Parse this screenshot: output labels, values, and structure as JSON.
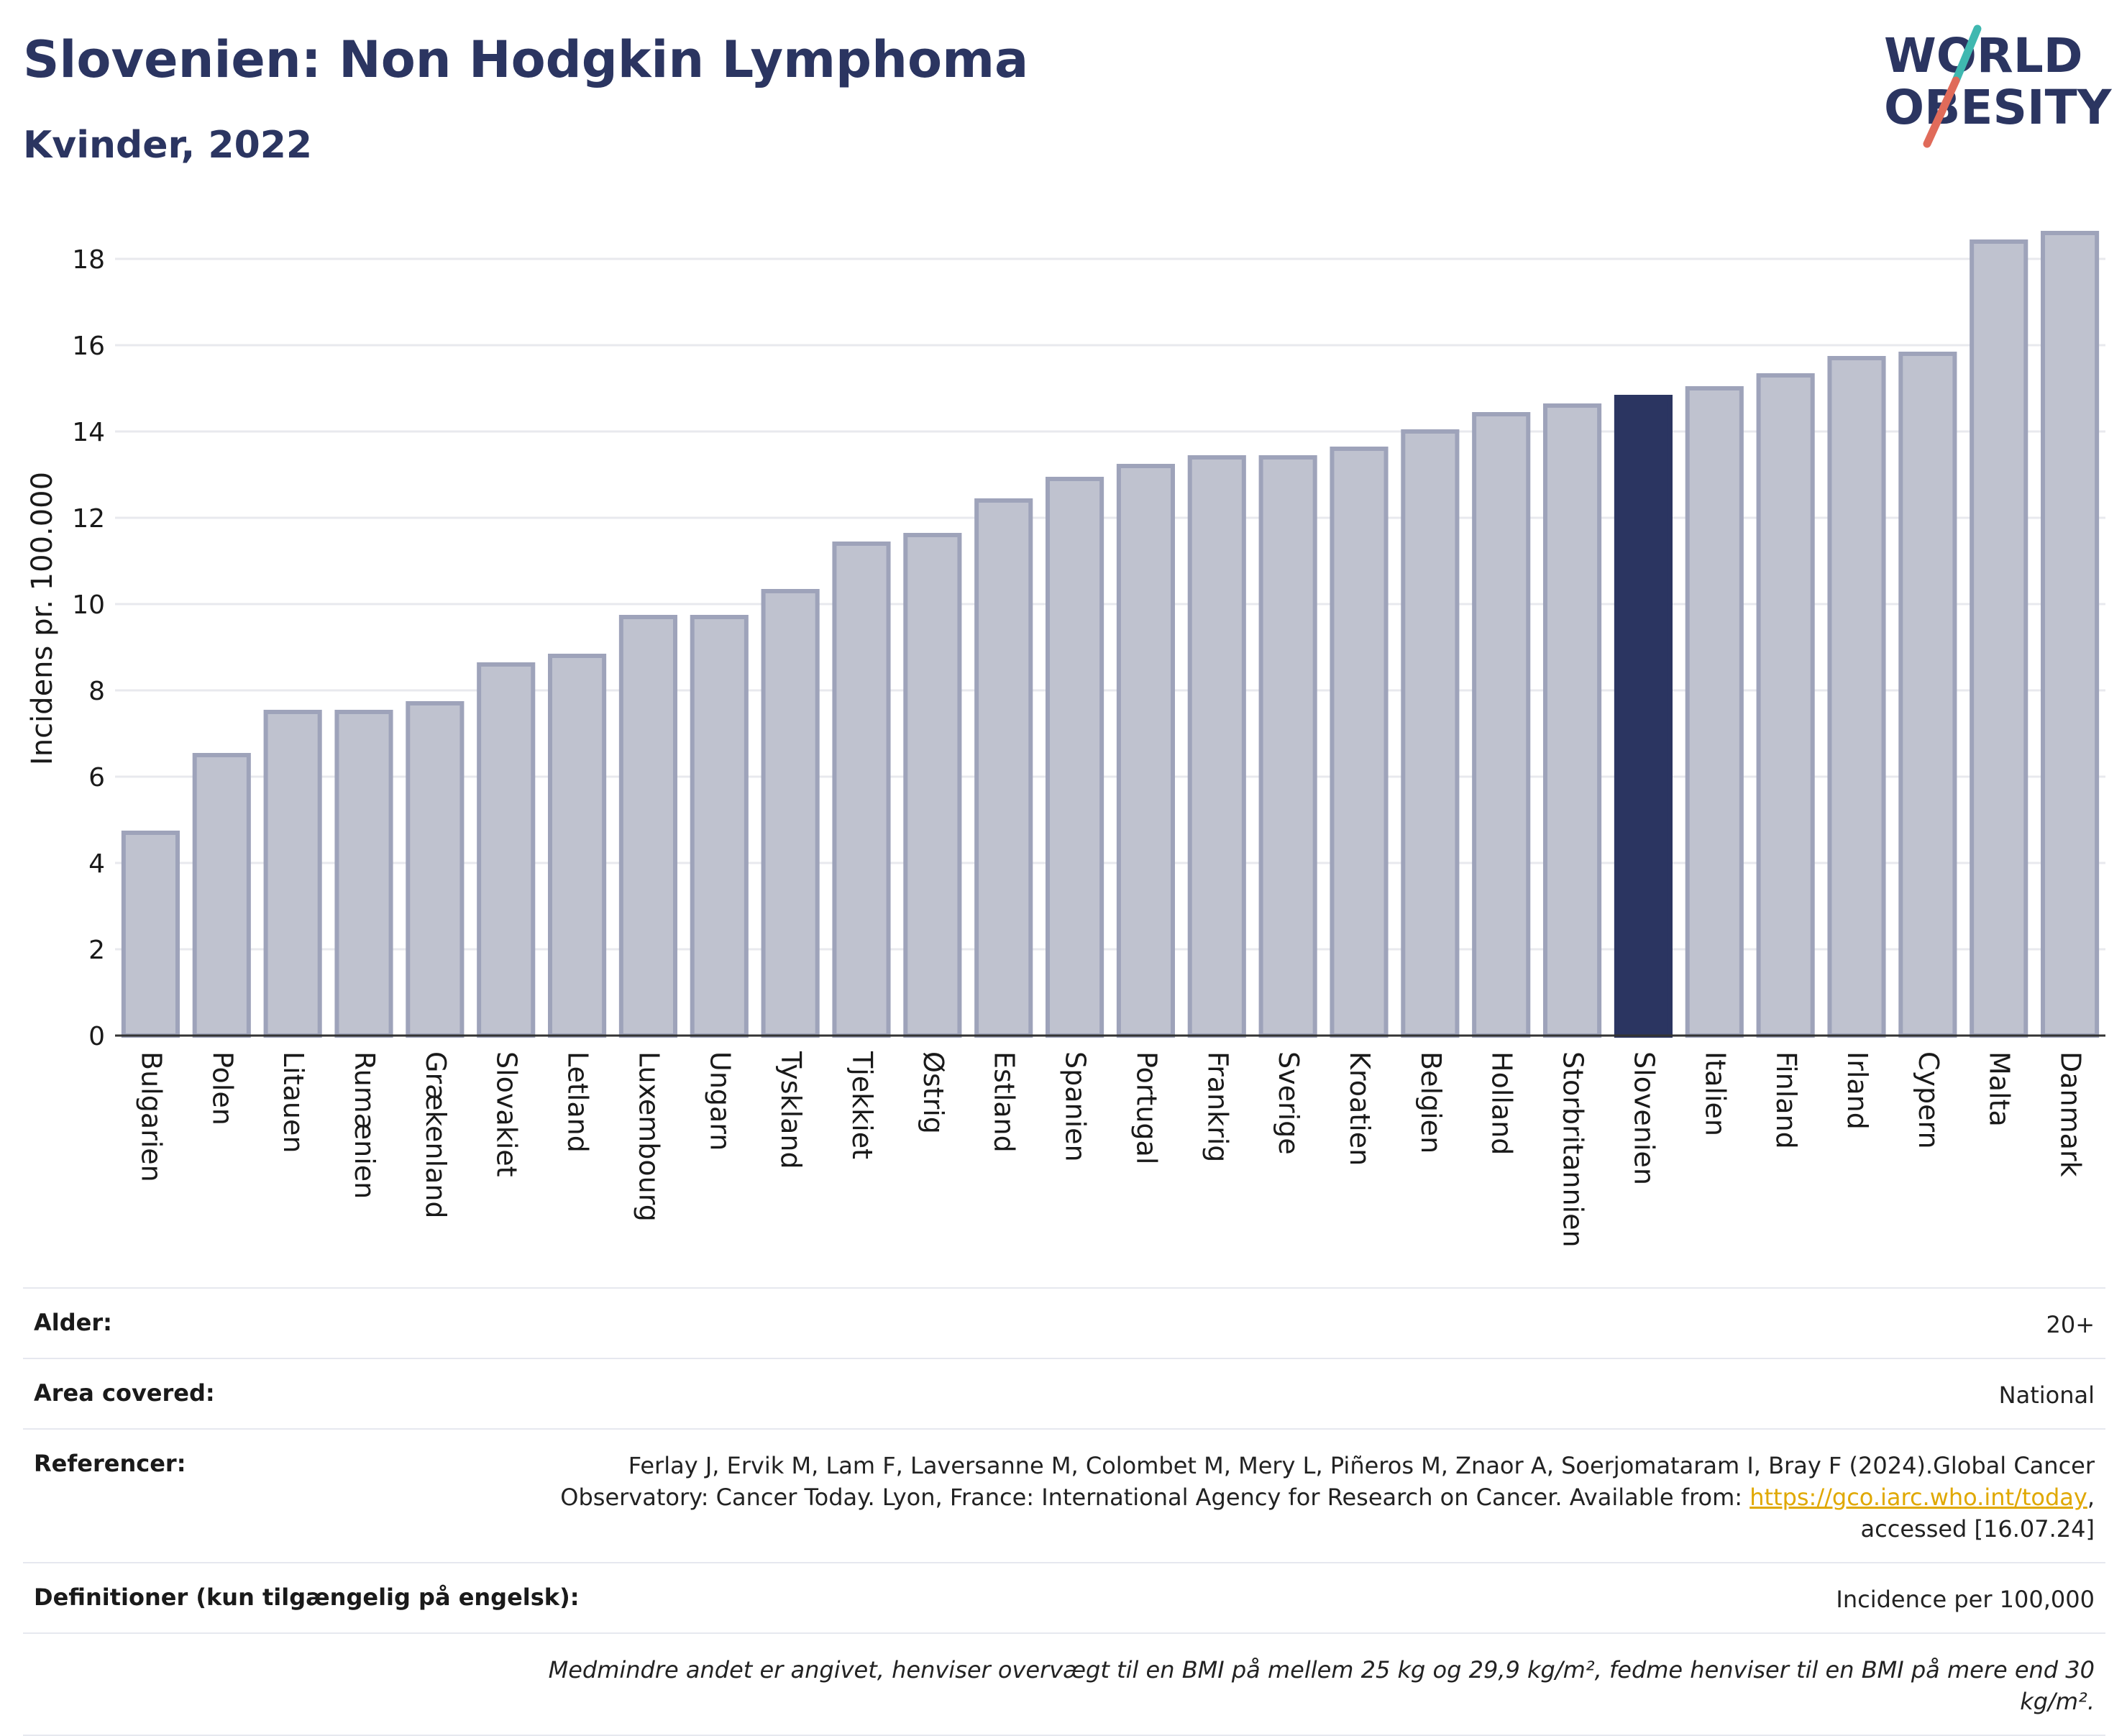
{
  "header": {
    "title": "Slovenien: Non Hodgkin Lymphoma",
    "subtitle": "Kvinder, 2022"
  },
  "logo": {
    "line1": "WORLD",
    "line2": "OBESITY",
    "accent_teal": "#3fb8b0",
    "accent_red": "#e06b5a"
  },
  "colors": {
    "bar": "#bfc2cf",
    "bar_edge": "#9ea3ba",
    "highlight": "#2b3561",
    "grid": "#e8e9ee",
    "axis": "#333333"
  },
  "chart_data": {
    "type": "bar",
    "ylabel": "Incidens pr. 100.000",
    "ylim": [
      0,
      19
    ],
    "yticks": [
      0,
      2,
      4,
      6,
      8,
      10,
      12,
      14,
      16,
      18
    ],
    "grid": true,
    "highlight": "Slovenien",
    "categories": [
      "Bulgarien",
      "Polen",
      "Litauen",
      "Rumænien",
      "Grækenland",
      "Slovakiet",
      "Letland",
      "Luxembourg",
      "Ungarn",
      "Tyskland",
      "Tjekkiet",
      "Østrig",
      "Estland",
      "Spanien",
      "Portugal",
      "Frankrig",
      "Sverige",
      "Kroatien",
      "Belgien",
      "Holland",
      "Storbritannien",
      "Slovenien",
      "Italien",
      "Finland",
      "Irland",
      "Cypern",
      "Malta",
      "Danmark"
    ],
    "values": [
      4.7,
      6.5,
      7.5,
      7.5,
      7.7,
      8.6,
      8.8,
      9.7,
      9.7,
      10.3,
      11.4,
      11.6,
      12.4,
      12.9,
      13.2,
      13.4,
      13.4,
      13.6,
      14.0,
      14.4,
      14.6,
      14.8,
      15.0,
      15.3,
      15.7,
      15.8,
      18.4,
      18.6
    ]
  },
  "info": {
    "age_label": "Alder:",
    "age_value": "20+",
    "area_label": "Area covered:",
    "area_value": "National",
    "ref_label": "Referencer:",
    "ref_text_1": "Ferlay J, Ervik M, Lam F, Laversanne M, Colombet M, Mery L, Piñeros M, Znaor A, Soerjomataram I, Bray F (2024).Global Cancer Observatory: Cancer Today. Lyon, France: International Agency for Research on Cancer. Available from: ",
    "ref_link": "https://gco.iarc.who.int/today",
    "ref_text_2": ", accessed [16.07.24]",
    "def_label": "Definitioner (kun tilgængelig på engelsk):",
    "def_value": "Incidence per 100,000",
    "note": "Medmindre andet er angivet, henviser overvægt til en BMI på mellem 25 kg og 29,9 kg/m², fedme henviser til en BMI på mere end 30 kg/m²."
  }
}
